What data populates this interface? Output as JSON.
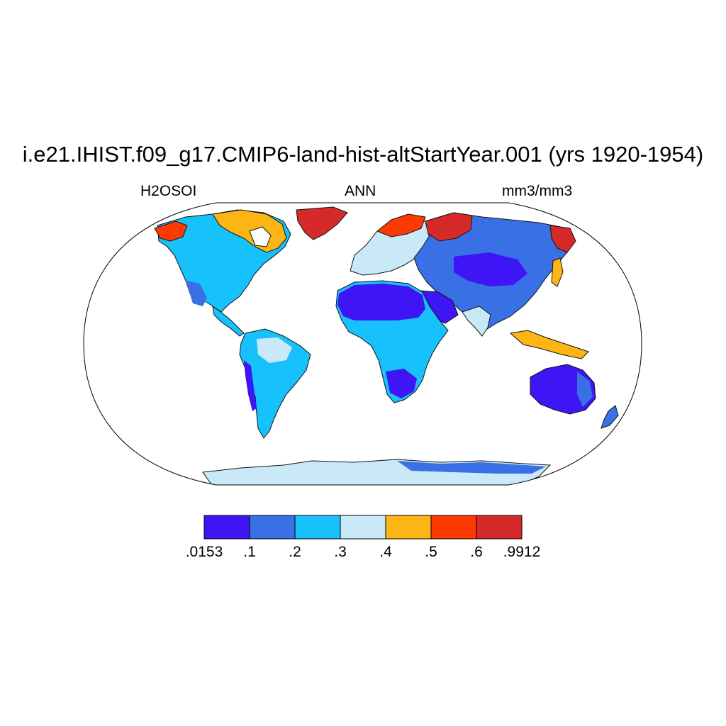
{
  "title": "i.e21.IHIST.f09_g17.CMIP6-land-hist-altStartYear.001 (yrs 1920-1954)",
  "left_string": "H2OSOI",
  "center_string": "ANN",
  "right_string": "mm3/mm3",
  "projection": "Robinson",
  "colorbar": {
    "colors": [
      "#3e16f5",
      "#3a70e6",
      "#17c1fb",
      "#c9e9f8",
      "#fdb515",
      "#fe3a04",
      "#d62a2a"
    ],
    "labels": [
      ".0153",
      ".1",
      ".2",
      ".3",
      ".4",
      ".5",
      ".6",
      ".9912"
    ]
  }
}
